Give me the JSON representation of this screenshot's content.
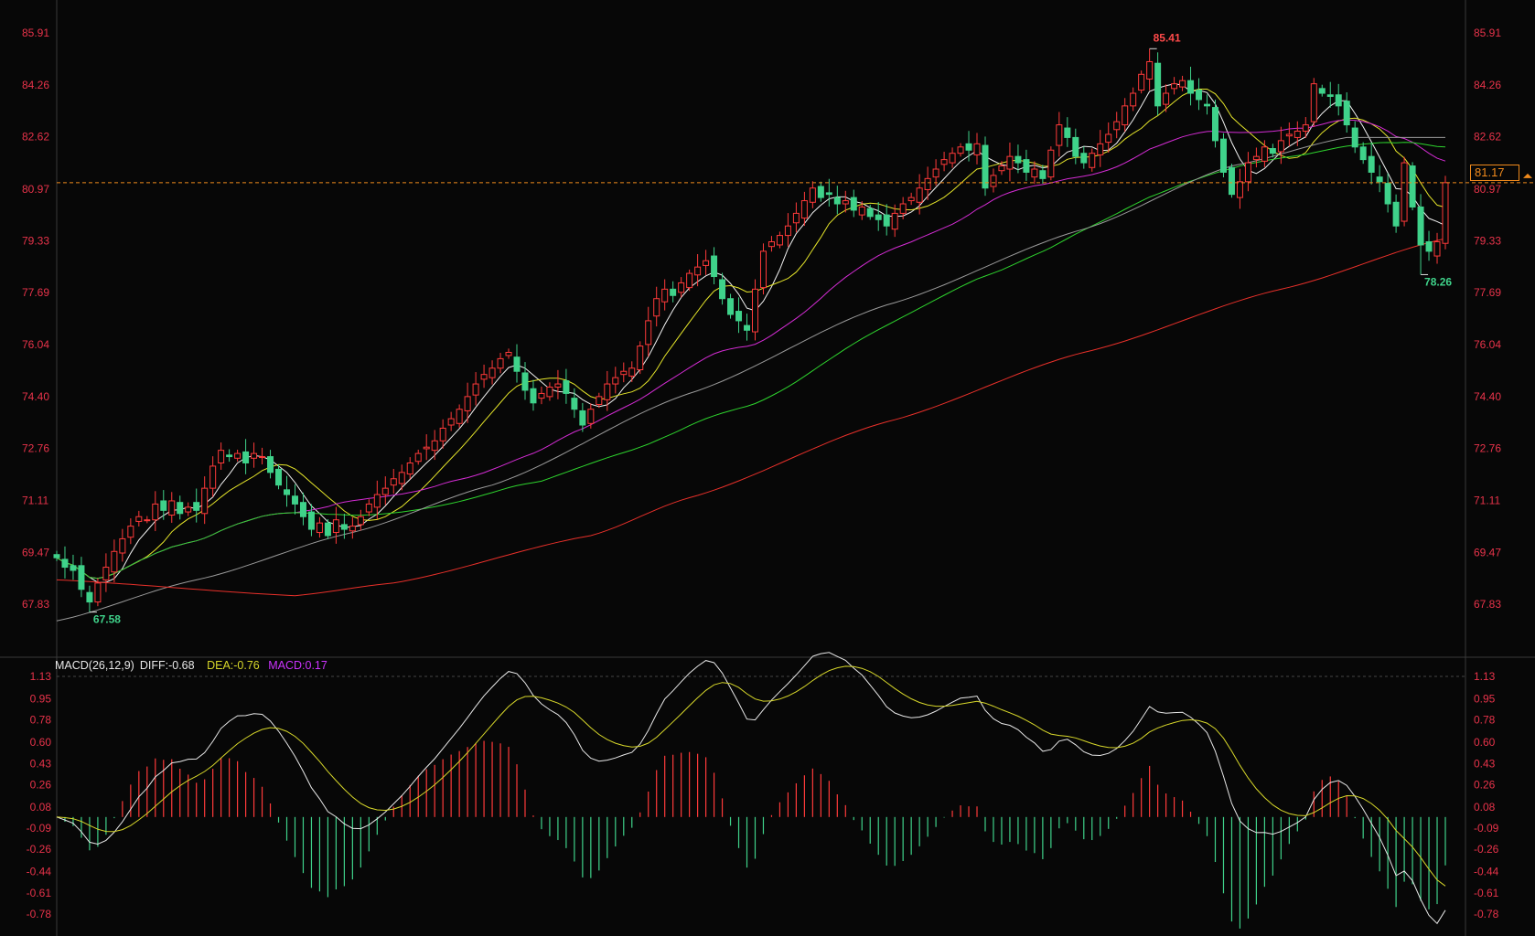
{
  "chart_data": {
    "type": "candlestick",
    "price_axis": {
      "ticks": [
        "85.91",
        "84.26",
        "82.62",
        "80.97",
        "79.33",
        "77.69",
        "76.04",
        "74.40",
        "72.76",
        "71.11",
        "69.47",
        "67.83"
      ],
      "ylim": [
        67.83,
        85.91
      ]
    },
    "closes": [
      69.3,
      69.0,
      68.9,
      68.3,
      67.9,
      68.5,
      69.0,
      69.5,
      69.9,
      70.3,
      70.6,
      70.5,
      71.0,
      70.8,
      71.1,
      70.7,
      70.9,
      70.8,
      71.5,
      72.2,
      72.7,
      72.5,
      72.6,
      72.3,
      72.6,
      72.5,
      72.0,
      71.6,
      71.3,
      71.0,
      70.6,
      70.2,
      70.4,
      70.0,
      70.5,
      70.2,
      70.3,
      70.6,
      71.0,
      71.3,
      71.5,
      71.8,
      72.0,
      72.3,
      72.6,
      72.8,
      73.0,
      73.4,
      73.7,
      74.0,
      74.4,
      74.8,
      75.1,
      75.3,
      75.6,
      75.8,
      75.2,
      74.6,
      74.2,
      74.5,
      74.7,
      74.8,
      74.5,
      74.0,
      73.5,
      74.0,
      74.4,
      74.8,
      75.0,
      75.2,
      75.3,
      76.0,
      76.8,
      77.5,
      77.8,
      77.6,
      78.0,
      78.3,
      78.5,
      78.7,
      78.2,
      77.5,
      77.0,
      76.8,
      76.5,
      77.8,
      79.0,
      79.3,
      79.5,
      79.8,
      80.2,
      80.6,
      81.0,
      80.7,
      80.8,
      80.5,
      80.6,
      80.3,
      80.4,
      80.1,
      80.0,
      79.8,
      80.2,
      80.5,
      80.7,
      81.0,
      81.3,
      81.6,
      81.9,
      82.1,
      82.3,
      82.2,
      82.4,
      81.0,
      81.4,
      81.7,
      82.0,
      81.8,
      81.5,
      81.6,
      81.3,
      82.2,
      83.0,
      82.6,
      82.0,
      81.8,
      82.1,
      82.4,
      82.7,
      83.1,
      83.6,
      84.0,
      84.6,
      85.0,
      83.6,
      84.0,
      84.3,
      84.4,
      84.0,
      83.8,
      83.6,
      82.5,
      81.5,
      80.8,
      81.2,
      81.8,
      82.0,
      82.3,
      82.1,
      82.5,
      82.7,
      82.8,
      83.0,
      84.3,
      84.0,
      83.9,
      83.6,
      83.0,
      82.3,
      81.9,
      81.5,
      81.2,
      80.5,
      79.8,
      81.8,
      80.4,
      79.2,
      79.0,
      79.3,
      81.17
    ],
    "extremes": {
      "high": {
        "index": 133,
        "value": "85.41"
      },
      "low": {
        "index": 4,
        "value": "67.58"
      },
      "recent_low": {
        "index": 166,
        "value": "78.26"
      }
    },
    "last_price": "81.17",
    "moving_averages": [
      {
        "period": 5,
        "color": "#f2f2f2"
      },
      {
        "period": 10,
        "color": "#e6e62a"
      },
      {
        "period": 30,
        "color": "#d42cd4"
      },
      {
        "period": 60,
        "color": "#2ed42e"
      },
      {
        "color": "#9a9a9a",
        "points": [
          [
            0,
            67.3
          ],
          [
            17,
            68.6
          ],
          [
            36,
            70.1
          ],
          [
            53,
            71.6
          ],
          [
            77,
            74.5
          ],
          [
            101,
            77.3
          ],
          [
            125,
            79.7
          ],
          [
            143,
            81.7
          ],
          [
            157,
            82.6
          ],
          [
            169,
            82.6
          ]
        ]
      },
      {
        "color": "#e8302a",
        "points": [
          [
            0,
            68.6
          ],
          [
            29,
            68.1
          ],
          [
            41,
            68.5
          ],
          [
            65,
            70.0
          ],
          [
            77,
            71.2
          ],
          [
            101,
            73.6
          ],
          [
            125,
            75.8
          ],
          [
            149,
            77.8
          ],
          [
            169,
            79.4
          ]
        ]
      }
    ],
    "colors": {
      "up": "#ff3a3a",
      "down": "#3fd28a",
      "axis_text": "#e8334a",
      "last_price": "#f08a1c"
    },
    "macd": {
      "params": "MACD(26,12,9)",
      "diff_label": "DIFF:-0.68",
      "dea_label": "DEA:-0.76",
      "macd_label": "MACD:0.17",
      "ticks": [
        "1.13",
        "0.95",
        "0.78",
        "0.60",
        "0.43",
        "0.26",
        "0.08",
        "-0.09",
        "-0.26",
        "-0.44",
        "-0.61",
        "-0.78"
      ],
      "ylim": [
        -0.78,
        1.13
      ],
      "colors": {
        "diff": "#e8e8e8",
        "dea": "#d8d82a",
        "macd": "#cc33ff"
      }
    }
  }
}
